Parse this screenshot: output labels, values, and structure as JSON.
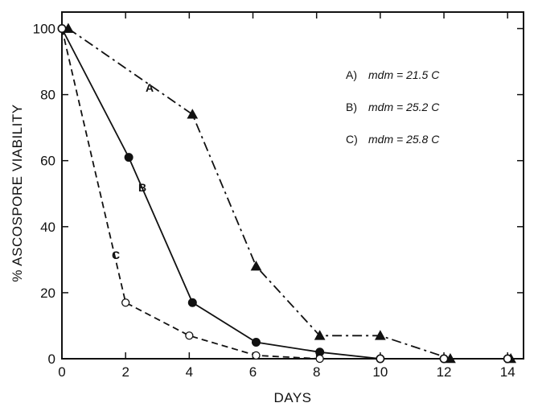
{
  "chart_data": {
    "type": "line",
    "xlabel": "DAYS",
    "ylabel": "% ASCOSPORE VIABILITY",
    "xlim": [
      0,
      14.5
    ],
    "ylim": [
      0,
      105
    ],
    "xticks": [
      0,
      2,
      4,
      6,
      8,
      10,
      12,
      14
    ],
    "yticks": [
      0,
      20,
      40,
      60,
      80,
      100
    ],
    "grid": false,
    "legend_position": "top-right",
    "legend": [
      {
        "label": "A)",
        "text": "mdm = 21.5 C"
      },
      {
        "label": "B)",
        "text": "mdm = 25.2 C"
      },
      {
        "label": "C)",
        "text": "mdm = 25.8 C"
      }
    ],
    "series": [
      {
        "name": "A",
        "line_style": "dashdot",
        "marker": "filled-triangle",
        "x": [
          0.2,
          4.1,
          6.1,
          8.1,
          10.0,
          12.2,
          14.1
        ],
        "y": [
          100,
          74,
          28,
          7,
          7,
          0,
          0
        ]
      },
      {
        "name": "B",
        "line_style": "solid",
        "marker": "filled-circle",
        "x": [
          0,
          2.1,
          4.1,
          6.1,
          8.1,
          10.0,
          12.0,
          14.0
        ],
        "y": [
          100,
          61,
          17,
          5,
          2,
          0,
          0,
          0
        ]
      },
      {
        "name": "C",
        "line_style": "dashed",
        "marker": "open-circle",
        "x": [
          0,
          2.0,
          4.0,
          6.1,
          8.1,
          10.0,
          12.0,
          14.0
        ],
        "y": [
          100,
          17,
          7,
          1,
          0,
          0,
          0,
          0
        ]
      }
    ]
  }
}
